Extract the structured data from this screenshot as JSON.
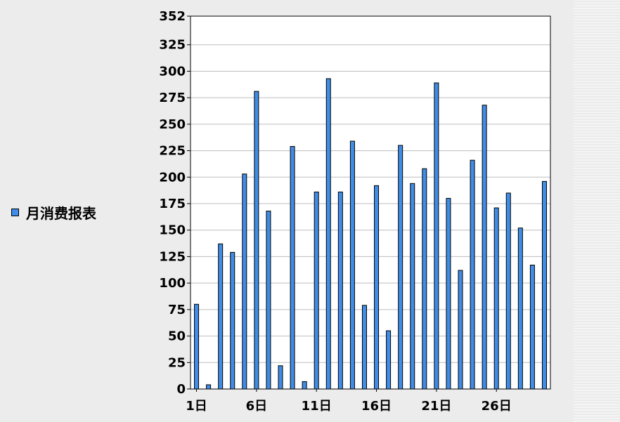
{
  "chart_data": {
    "type": "bar",
    "categories": [
      "1日",
      "2日",
      "3日",
      "4日",
      "5日",
      "6日",
      "7日",
      "8日",
      "9日",
      "10日",
      "11日",
      "12日",
      "13日",
      "14日",
      "15日",
      "16日",
      "17日",
      "18日",
      "19日",
      "20日",
      "21日",
      "22日",
      "23日",
      "24日",
      "25日",
      "26日",
      "27日",
      "28日",
      "29日",
      "30日"
    ],
    "x_tick_labels": [
      "1日",
      "6日",
      "11日",
      "16日",
      "21日",
      "26日"
    ],
    "series": [
      {
        "name": "月消费报表",
        "values": [
          80,
          4,
          137,
          129,
          203,
          281,
          168,
          22,
          229,
          7,
          186,
          293,
          186,
          234,
          79,
          192,
          55,
          230,
          194,
          208,
          289,
          180,
          112,
          216,
          268,
          171,
          185,
          152,
          117,
          196
        ]
      }
    ],
    "ylim": [
      0,
      352
    ],
    "y_ticks": [
      0,
      25,
      50,
      75,
      100,
      125,
      150,
      175,
      200,
      225,
      250,
      275,
      300,
      325,
      352
    ],
    "grid": true,
    "legend_placement": "left",
    "colors": {
      "bar": "#3f8de6",
      "bar_stroke": "#000000",
      "grid": "#bdbdbd",
      "plot_bg": "#ffffff"
    }
  }
}
